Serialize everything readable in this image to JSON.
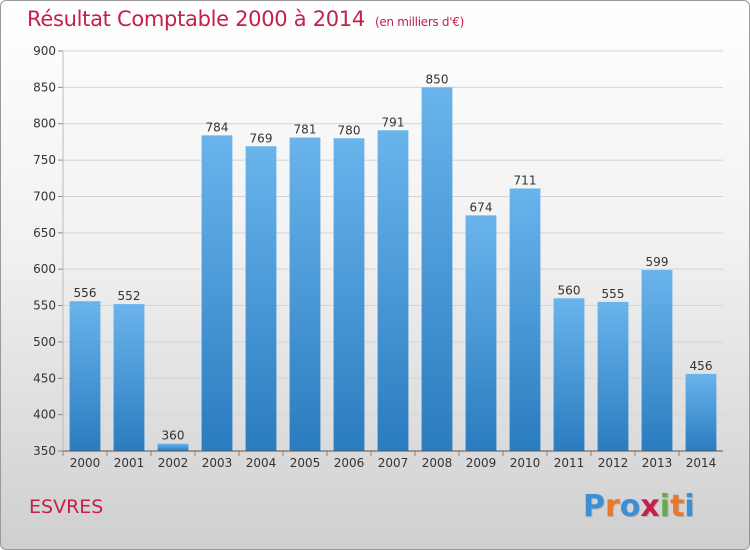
{
  "header": {
    "title": "Résultat Comptable 2000 à 2014",
    "subtitle": "(en milliers d'€)"
  },
  "footer": {
    "commune": "ESVRES",
    "logo_letters": [
      "P",
      "r",
      "o",
      "x",
      "i",
      "t",
      "i"
    ],
    "logo_colors": [
      "#3b8fd4",
      "#e8782a",
      "#3b8fd4",
      "#c4204a",
      "#6aa84f",
      "#e8782a",
      "#3b8fd4"
    ]
  },
  "chart_data": {
    "type": "bar",
    "title": "Résultat Comptable 2000 à 2014",
    "subtitle": "(en milliers d'€)",
    "xlabel": "",
    "ylabel": "",
    "categories": [
      "2000",
      "2001",
      "2002",
      "2003",
      "2004",
      "2005",
      "2006",
      "2007",
      "2008",
      "2009",
      "2010",
      "2011",
      "2012",
      "2013",
      "2014"
    ],
    "values": [
      556,
      552,
      360,
      784,
      769,
      781,
      780,
      791,
      850,
      674,
      711,
      560,
      555,
      599,
      456
    ],
    "ylim": [
      350,
      900
    ],
    "yticks": [
      350,
      400,
      450,
      500,
      550,
      600,
      650,
      700,
      750,
      800,
      850,
      900
    ],
    "grid": true,
    "bar_color_top": "#6ab4ec",
    "bar_color_bottom": "#2a7cc0"
  }
}
